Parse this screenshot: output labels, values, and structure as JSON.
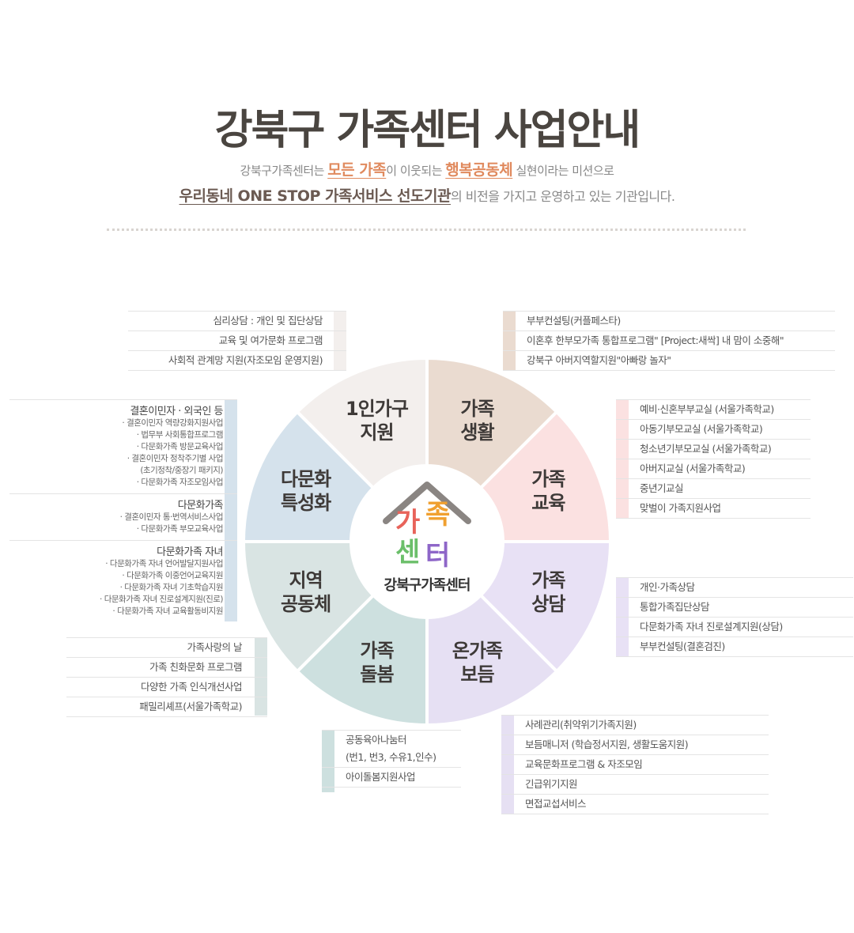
{
  "header": {
    "title": "강북구 가족센터 사업안내",
    "line1_pre": "강북구가족센터는 ",
    "line1_hl1": "모든 가족",
    "line1_mid": "이 이웃되는 ",
    "line1_hl2": "행복공동체",
    "line1_post": " 실현이라는 미션으로",
    "line2_hl": "우리동네 ONE STOP 가족서비스 선도기관",
    "line2_post": "의 비전을 가지고 운영하고 있는 기관입니다."
  },
  "logo": {
    "chars": [
      "가",
      "족",
      "센",
      "터"
    ],
    "caption": "강북구가족센터"
  },
  "segments": [
    {
      "l1": "가족",
      "l2": "생활",
      "color": "#eadbd0"
    },
    {
      "l1": "가족",
      "l2": "교육",
      "color": "#fbe1e1"
    },
    {
      "l1": "가족",
      "l2": "상담",
      "color": "#e8e1f5"
    },
    {
      "l1": "온가족",
      "l2": "보듬",
      "color": "#e6e0f3"
    },
    {
      "l1": "가족",
      "l2": "돌봄",
      "color": "#cde0df"
    },
    {
      "l1": "지역",
      "l2": "공동체",
      "color": "#d9e4e3"
    },
    {
      "l1": "다문화",
      "l2": "특성화",
      "color": "#d5e2ec"
    },
    {
      "l1": "1인가구",
      "l2": "지원",
      "color": "#f3efed"
    }
  ],
  "boxes": {
    "family_life": [
      "부부컨설팅(커플페스타)",
      "이혼후 한부모가족 통합프로그램\" [Project:새싹] 내 맘이 소중해\"",
      "강북구 아버지역할지원\"아빠랑 놀자\""
    ],
    "single": [
      "심리상담 : 개인 및 집단상담",
      "교육 및 여가문화 프로그램",
      "사회적 관계망 지원(자조모임 운영지원)"
    ],
    "education": [
      "예비·신혼부부교실 (서울가족학교)",
      "아동기부모교실 (서울가족학교)",
      "청소년기부모교실 (서울가족학교)",
      "아버지교실 (서울가족학교)",
      "중년기교실",
      "맞벌이 가족지원사업"
    ],
    "counsel": [
      "개인·가족상담",
      "통합가족집단상담",
      "다문화가족 자녀 진로설계지원(상담)",
      "부부컨설팅(결혼검진)"
    ],
    "bodeum": [
      "사례관리(취약위기가족지원)",
      "보듬매니저 (학습정서지원, 생활도움지원)",
      "교육문화프로그램 & 자조모임",
      "긴급위기지원",
      "면접교섭서비스"
    ],
    "care": [
      "공동육아나눔터",
      "(번1, 번3, 수유1,인수)",
      "아이돌봄지원사업"
    ],
    "community": [
      "가족사랑의 날",
      "가족 친화문화 프로그램",
      "다양한 가족 인식개선사업",
      "패밀리셰프(서울가족학교)"
    ]
  },
  "multicultural": [
    {
      "head": "결혼이민자 · 외국인 등",
      "items": [
        "· 결혼이민자 역량강화지원사업",
        "· 법무부 사회통합프로그램",
        "· 다문화가족 방문교육사업",
        "· 결혼이민자 정착주기별 사업",
        "(초기정착/중장기 패키지)",
        "· 다문화가족 자조모임사업"
      ]
    },
    {
      "head": "다문화가족",
      "items": [
        "· 결혼이민자 통·번역서비스사업",
        "· 다문화가족 부모교육사업"
      ]
    },
    {
      "head": "다문화가족 자녀",
      "items": [
        "· 다문화가족 자녀 언어발달지원사업",
        "· 다문화가족 이중언어교육지원",
        "· 다문화가족 자녀 기초학습지원",
        "· 다문화가족 자녀 진로설계지원(진로)",
        "· 다문화가족 자녀 교육활동비지원"
      ]
    }
  ],
  "colors": {
    "accent": "#e08a5e",
    "logo": [
      "#e8635a",
      "#f0a030",
      "#6bbf6a",
      "#8e66c8"
    ]
  }
}
